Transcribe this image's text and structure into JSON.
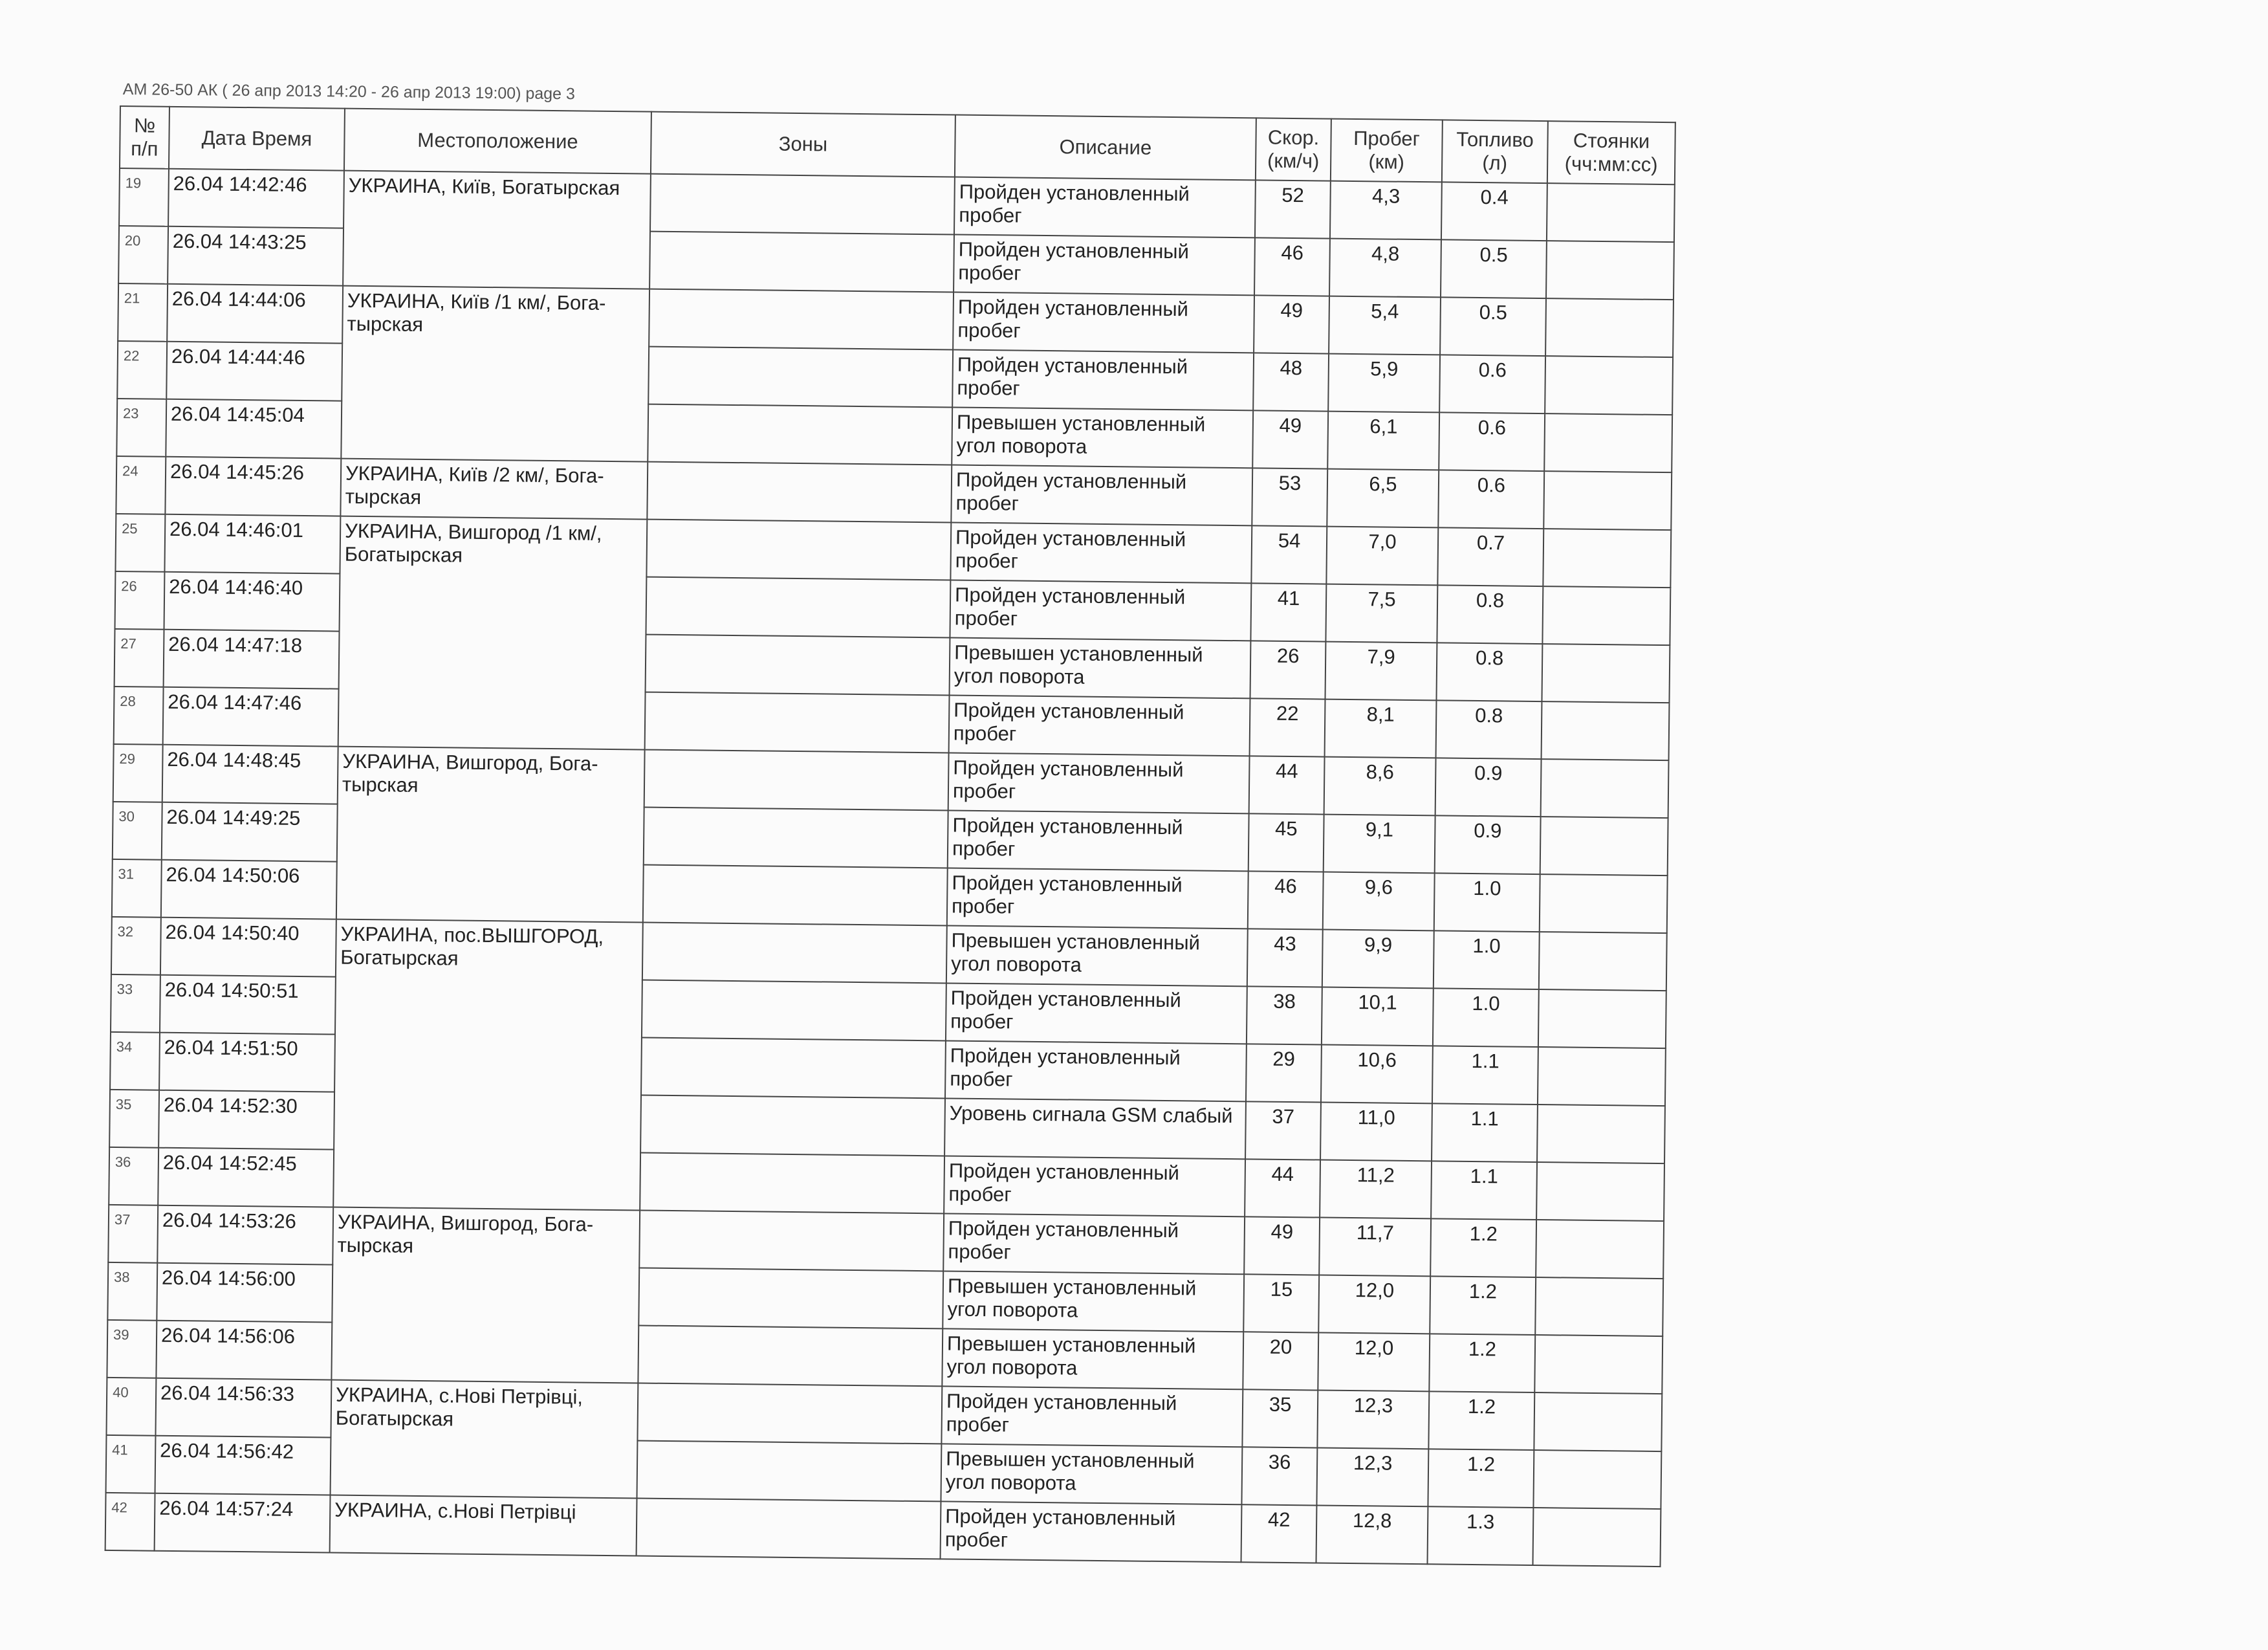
{
  "caption": "АМ 26-50 АК   ( 26 апр 2013 14:20  -  26 апр 2013 19:00)   page 3",
  "headers": {
    "num": "№ п/п",
    "datetime": "Дата Время",
    "location": "Местоположение",
    "zones": "Зоны",
    "description": "Описание",
    "speed": "Скор. (км/ч)",
    "mileage": "Пробег (км)",
    "fuel": "Топливо (л)",
    "parking": "Стоянки (чч:мм:сс)"
  },
  "locations": [
    {
      "first": 0,
      "span": 2,
      "text": "УКРАИНА, Київ, Богатырская"
    },
    {
      "first": 2,
      "span": 3,
      "text": "УКРАИНА, Київ /1 км/, Бога-тырская"
    },
    {
      "first": 5,
      "span": 1,
      "text": "УКРАИНА, Київ /2 км/, Бога-тырская"
    },
    {
      "first": 6,
      "span": 4,
      "text": "УКРАИНА, Вишгород /1 км/, Богатырская"
    },
    {
      "first": 10,
      "span": 3,
      "text": "УКРАИНА, Вишгород, Бога-тырская"
    },
    {
      "first": 13,
      "span": 5,
      "text": "УКРАИНА, пос.ВЫШГОРОД, Богатырская"
    },
    {
      "first": 18,
      "span": 3,
      "text": "УКРАИНА, Вишгород, Бога-тырская"
    },
    {
      "first": 21,
      "span": 2,
      "text": "УКРАИНА, с.Нові Петрівці, Богатырская"
    },
    {
      "first": 23,
      "span": 1,
      "text": "УКРАИНА, с.Нові Петрівці"
    }
  ],
  "rows": [
    {
      "num": "19",
      "datetime": "26.04  14:42:46",
      "zone": "",
      "description": "Пройден установленный пробег",
      "speed": "52",
      "mileage": "4,3",
      "fuel": "0.4",
      "parking": ""
    },
    {
      "num": "20",
      "datetime": "26.04  14:43:25",
      "zone": "",
      "description": "Пройден установленный пробег",
      "speed": "46",
      "mileage": "4,8",
      "fuel": "0.5",
      "parking": ""
    },
    {
      "num": "21",
      "datetime": "26.04  14:44:06",
      "zone": "",
      "description": "Пройден установленный пробег",
      "speed": "49",
      "mileage": "5,4",
      "fuel": "0.5",
      "parking": ""
    },
    {
      "num": "22",
      "datetime": "26.04  14:44:46",
      "zone": "",
      "description": "Пройден установленный пробег",
      "speed": "48",
      "mileage": "5,9",
      "fuel": "0.6",
      "parking": ""
    },
    {
      "num": "23",
      "datetime": "26.04  14:45:04",
      "zone": "",
      "description": "Превышен установленный угол поворота",
      "speed": "49",
      "mileage": "6,1",
      "fuel": "0.6",
      "parking": ""
    },
    {
      "num": "24",
      "datetime": "26.04  14:45:26",
      "zone": "",
      "description": "Пройден установленный пробег",
      "speed": "53",
      "mileage": "6,5",
      "fuel": "0.6",
      "parking": ""
    },
    {
      "num": "25",
      "datetime": "26.04  14:46:01",
      "zone": "",
      "description": "Пройден установленный пробег",
      "speed": "54",
      "mileage": "7,0",
      "fuel": "0.7",
      "parking": ""
    },
    {
      "num": "26",
      "datetime": "26.04  14:46:40",
      "zone": "",
      "description": "Пройден установленный пробег",
      "speed": "41",
      "mileage": "7,5",
      "fuel": "0.8",
      "parking": ""
    },
    {
      "num": "27",
      "datetime": "26.04  14:47:18",
      "zone": "",
      "description": "Превышен установленный угол поворота",
      "speed": "26",
      "mileage": "7,9",
      "fuel": "0.8",
      "parking": ""
    },
    {
      "num": "28",
      "datetime": "26.04  14:47:46",
      "zone": "",
      "description": "Пройден установленный пробег",
      "speed": "22",
      "mileage": "8,1",
      "fuel": "0.8",
      "parking": ""
    },
    {
      "num": "29",
      "datetime": "26.04  14:48:45",
      "zone": "",
      "description": "Пройден установленный пробег",
      "speed": "44",
      "mileage": "8,6",
      "fuel": "0.9",
      "parking": ""
    },
    {
      "num": "30",
      "datetime": "26.04  14:49:25",
      "zone": "",
      "description": "Пройден установленный пробег",
      "speed": "45",
      "mileage": "9,1",
      "fuel": "0.9",
      "parking": ""
    },
    {
      "num": "31",
      "datetime": "26.04  14:50:06",
      "zone": "",
      "description": "Пройден установленный пробег",
      "speed": "46",
      "mileage": "9,6",
      "fuel": "1.0",
      "parking": ""
    },
    {
      "num": "32",
      "datetime": "26.04  14:50:40",
      "zone": "",
      "description": "Превышен установленный угол поворота",
      "speed": "43",
      "mileage": "9,9",
      "fuel": "1.0",
      "parking": ""
    },
    {
      "num": "33",
      "datetime": "26.04  14:50:51",
      "zone": "",
      "description": "Пройден установленный пробег",
      "speed": "38",
      "mileage": "10,1",
      "fuel": "1.0",
      "parking": ""
    },
    {
      "num": "34",
      "datetime": "26.04  14:51:50",
      "zone": "",
      "description": "Пройден установленный пробег",
      "speed": "29",
      "mileage": "10,6",
      "fuel": "1.1",
      "parking": ""
    },
    {
      "num": "35",
      "datetime": "26.04  14:52:30",
      "zone": "",
      "description": "Уровень сигнала GSM слабый",
      "speed": "37",
      "mileage": "11,0",
      "fuel": "1.1",
      "parking": ""
    },
    {
      "num": "36",
      "datetime": "26.04  14:52:45",
      "zone": "",
      "description": "Пройден установленный пробег",
      "speed": "44",
      "mileage": "11,2",
      "fuel": "1.1",
      "parking": ""
    },
    {
      "num": "37",
      "datetime": "26.04  14:53:26",
      "zone": "",
      "description": "Пройден установленный пробег",
      "speed": "49",
      "mileage": "11,7",
      "fuel": "1.2",
      "parking": ""
    },
    {
      "num": "38",
      "datetime": "26.04  14:56:00",
      "zone": "",
      "description": "Превышен установленный угол поворота",
      "speed": "15",
      "mileage": "12,0",
      "fuel": "1.2",
      "parking": ""
    },
    {
      "num": "39",
      "datetime": "26.04  14:56:06",
      "zone": "",
      "description": "Превышен установленный угол поворота",
      "speed": "20",
      "mileage": "12,0",
      "fuel": "1.2",
      "parking": ""
    },
    {
      "num": "40",
      "datetime": "26.04  14:56:33",
      "zone": "",
      "description": "Пройден установленный пробег",
      "speed": "35",
      "mileage": "12,3",
      "fuel": "1.2",
      "parking": ""
    },
    {
      "num": "41",
      "datetime": "26.04  14:56:42",
      "zone": "",
      "description": "Превышен установленный угол поворота",
      "speed": "36",
      "mileage": "12,3",
      "fuel": "1.2",
      "parking": ""
    },
    {
      "num": "42",
      "datetime": "26.04  14:57:24",
      "zone": "",
      "description": "Пройден установленный пробег",
      "speed": "42",
      "mileage": "12,8",
      "fuel": "1.3",
      "parking": ""
    }
  ]
}
